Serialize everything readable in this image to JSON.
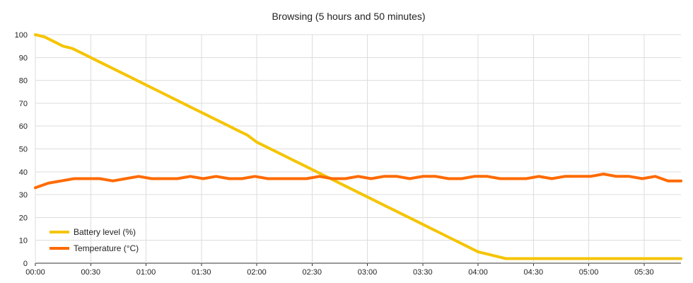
{
  "chart_data": {
    "type": "line",
    "title": "Browsing (5 hours and 50 minutes)",
    "xlabel": "",
    "ylabel": "",
    "ylim": [
      0,
      100
    ],
    "y_ticks": [
      0,
      10,
      20,
      30,
      40,
      50,
      60,
      70,
      80,
      90,
      100
    ],
    "x_ticks": [
      "00:00",
      "00:30",
      "01:00",
      "01:30",
      "02:00",
      "02:30",
      "03:00",
      "03:30",
      "04:00",
      "04:30",
      "05:00",
      "05:30"
    ],
    "x_unit_minutes": 5,
    "xlim_minutes": [
      0,
      350
    ],
    "grid": true,
    "legend_position": "bottom-left",
    "series": [
      {
        "name": "Battery level (%)",
        "color": "#f5c400",
        "values": [
          100,
          99,
          97,
          95,
          94,
          92,
          90,
          88,
          86,
          84,
          82,
          80,
          78,
          76,
          74,
          72,
          70,
          68,
          66,
          64,
          62,
          60,
          58,
          56,
          53,
          51,
          49,
          47,
          45,
          43,
          41,
          39,
          37,
          35,
          33,
          31,
          29,
          27,
          25,
          23,
          21,
          19,
          17,
          15,
          13,
          11,
          9,
          7,
          5,
          4,
          3,
          2,
          2,
          2,
          2,
          2,
          2,
          2,
          2,
          2,
          2,
          2,
          2,
          2,
          2,
          2,
          2,
          2,
          2,
          2,
          2
        ]
      },
      {
        "name": "Temperature (°C)",
        "color": "#ff6a00",
        "values": [
          33,
          35,
          36,
          37,
          37,
          37,
          36,
          37,
          38,
          37,
          37,
          37,
          38,
          37,
          38,
          37,
          37,
          38,
          37,
          37,
          37,
          37,
          38,
          37,
          37,
          38,
          37,
          38,
          38,
          37,
          38,
          38,
          37,
          37,
          38,
          38,
          37,
          37,
          37,
          38,
          37,
          38,
          38,
          38,
          39,
          38,
          38,
          37,
          38,
          36,
          36
        ]
      }
    ]
  }
}
